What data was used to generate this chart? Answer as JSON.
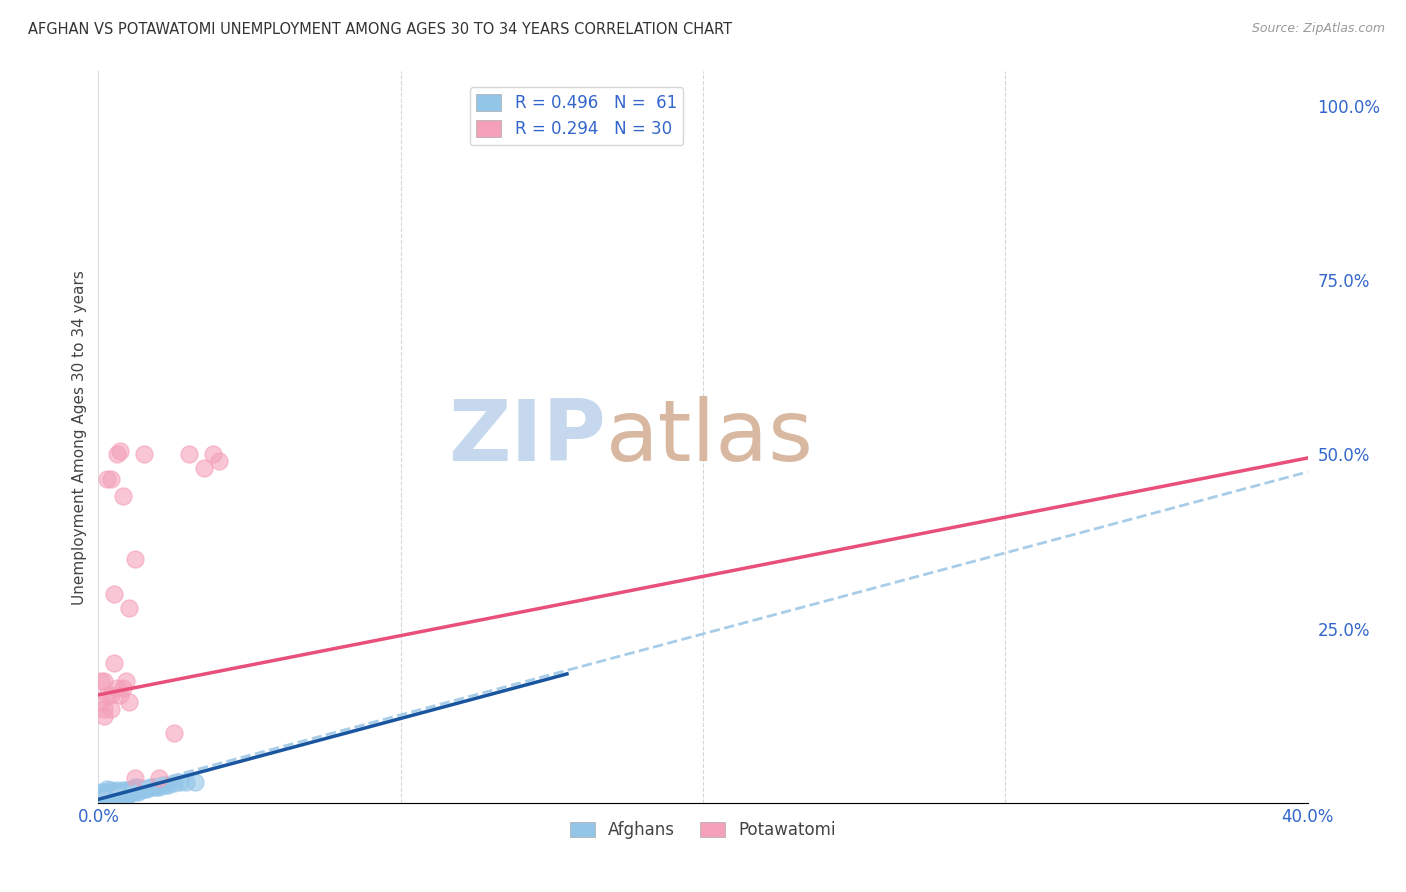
{
  "title": "AFGHAN VS POTAWATOMI UNEMPLOYMENT AMONG AGES 30 TO 34 YEARS CORRELATION CHART",
  "source": "Source: ZipAtlas.com",
  "ylabel": "Unemployment Among Ages 30 to 34 years",
  "xlim": [
    0.0,
    0.4
  ],
  "ylim": [
    0.0,
    1.05
  ],
  "xticks": [
    0.0,
    0.1,
    0.2,
    0.3,
    0.4
  ],
  "yticks_right": [
    0.0,
    0.25,
    0.5,
    0.75,
    1.0
  ],
  "ytickslabels_right": [
    "",
    "25.0%",
    "50.0%",
    "75.0%",
    "100.0%"
  ],
  "afghan_color": "#92C5E8",
  "potawatomi_color": "#F4A0B8",
  "afghan_line_color": "#1A56A0",
  "potawatomi_line_color": "#E8507A",
  "dashed_line_color": "#A8CDE8",
  "watermark_zip": "ZIP",
  "watermark_atlas": "atlas",
  "watermark_color_zip": "#C5D8EE",
  "watermark_color_atlas": "#D8B8A0",
  "grid_color": "#CCCCCC",
  "background_color": "#FFFFFF",
  "legend_r_afghan": "R = 0.496",
  "legend_n_afghan": "N =  61",
  "legend_r_potawatomi": "R = 0.294",
  "legend_n_potawatomi": "N = 30",
  "afghan_line_x0": 0.0,
  "afghan_line_y0": 0.005,
  "afghan_line_x1": 0.155,
  "afghan_line_y1": 0.185,
  "dashed_line_x0": 0.0,
  "dashed_line_y0": 0.01,
  "dashed_line_x1": 0.4,
  "dashed_line_y1": 0.475,
  "potawatomi_line_x0": 0.0,
  "potawatomi_line_y0": 0.155,
  "potawatomi_line_x1": 0.4,
  "potawatomi_line_y1": 0.495,
  "afghan_x": [
    0.001,
    0.001,
    0.001,
    0.002,
    0.002,
    0.002,
    0.003,
    0.003,
    0.003,
    0.003,
    0.004,
    0.004,
    0.004,
    0.004,
    0.005,
    0.005,
    0.005,
    0.006,
    0.006,
    0.006,
    0.007,
    0.007,
    0.008,
    0.008,
    0.009,
    0.009,
    0.01,
    0.01,
    0.011,
    0.011,
    0.012,
    0.012,
    0.013,
    0.013,
    0.014,
    0.015,
    0.016,
    0.017,
    0.018,
    0.019,
    0.02,
    0.021,
    0.022,
    0.023,
    0.025,
    0.027,
    0.029,
    0.032,
    0.001,
    0.001,
    0.002,
    0.002,
    0.003,
    0.003,
    0.004,
    0.005,
    0.006,
    0.007,
    0.008,
    0.009,
    0.01
  ],
  "afghan_y": [
    0.005,
    0.01,
    0.015,
    0.005,
    0.01,
    0.015,
    0.005,
    0.01,
    0.015,
    0.02,
    0.005,
    0.008,
    0.012,
    0.018,
    0.005,
    0.01,
    0.015,
    0.008,
    0.012,
    0.018,
    0.01,
    0.015,
    0.01,
    0.018,
    0.012,
    0.018,
    0.012,
    0.018,
    0.015,
    0.02,
    0.015,
    0.022,
    0.015,
    0.022,
    0.018,
    0.02,
    0.02,
    0.022,
    0.022,
    0.022,
    0.022,
    0.025,
    0.025,
    0.025,
    0.028,
    0.03,
    0.03,
    0.03,
    0.003,
    0.008,
    0.003,
    0.008,
    0.003,
    0.008,
    0.003,
    0.003,
    0.005,
    0.005,
    0.008,
    0.01,
    0.012
  ],
  "potawatomi_x": [
    0.001,
    0.002,
    0.002,
    0.003,
    0.004,
    0.004,
    0.005,
    0.006,
    0.007,
    0.008,
    0.009,
    0.01,
    0.012,
    0.015,
    0.02,
    0.025,
    0.03,
    0.035,
    0.038,
    0.04,
    0.001,
    0.002,
    0.003,
    0.004,
    0.005,
    0.006,
    0.007,
    0.008,
    0.01,
    0.012
  ],
  "potawatomi_y": [
    0.175,
    0.135,
    0.175,
    0.155,
    0.135,
    0.155,
    0.2,
    0.165,
    0.155,
    0.165,
    0.175,
    0.145,
    0.035,
    0.5,
    0.035,
    0.1,
    0.5,
    0.48,
    0.5,
    0.49,
    0.145,
    0.125,
    0.465,
    0.465,
    0.3,
    0.5,
    0.505,
    0.44,
    0.28,
    0.35
  ]
}
